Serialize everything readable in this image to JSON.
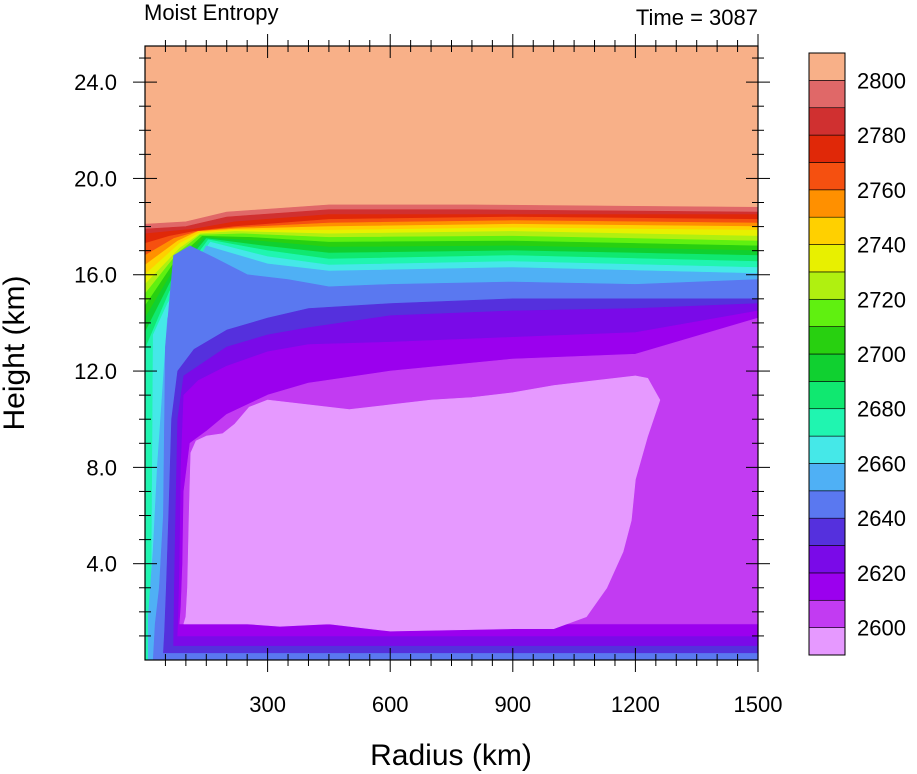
{
  "chart_data": {
    "type": "heatmap",
    "title_left": "Moist Entropy",
    "title_right": "Time = 3087",
    "xlabel": "Radius (km)",
    "ylabel": "Height (km)",
    "xlim": [
      0,
      1500
    ],
    "ylim": [
      0,
      25.5
    ],
    "x_ticks": [
      {
        "value": 300,
        "label": "300"
      },
      {
        "value": 600,
        "label": "600"
      },
      {
        "value": 900,
        "label": "900"
      },
      {
        "value": 1200,
        "label": "1200"
      },
      {
        "value": 1500,
        "label": "1500"
      }
    ],
    "y_ticks": [
      {
        "value": 4,
        "label": "4.0"
      },
      {
        "value": 8,
        "label": "8.0"
      },
      {
        "value": 12,
        "label": "12.0"
      },
      {
        "value": 16,
        "label": "16.0"
      },
      {
        "value": 20,
        "label": "20.0"
      },
      {
        "value": 24,
        "label": "24.0"
      }
    ],
    "colorbar": {
      "levels": [
        2600,
        2610,
        2620,
        2630,
        2640,
        2650,
        2660,
        2670,
        2680,
        2690,
        2700,
        2710,
        2720,
        2730,
        2740,
        2750,
        2760,
        2770,
        2780,
        2790,
        2800
      ],
      "colors": [
        "#e699ff",
        "#c23bf2",
        "#9b00ee",
        "#7a0ae8",
        "#5530dd",
        "#5a78f0",
        "#4fb0f5",
        "#45e8e8",
        "#20f5b0",
        "#10e870",
        "#10d030",
        "#28d010",
        "#60f010",
        "#b0f010",
        "#e8f000",
        "#ffd000",
        "#ff9000",
        "#f55010",
        "#e02808",
        "#d03030",
        "#e06868",
        "#f8b088"
      ],
      "labels": [
        {
          "value": 2600,
          "label": "2600"
        },
        {
          "value": 2620,
          "label": "2620"
        },
        {
          "value": 2640,
          "label": "2640"
        },
        {
          "value": 2660,
          "label": "2660"
        },
        {
          "value": 2680,
          "label": "2680"
        },
        {
          "value": 2700,
          "label": "2700"
        },
        {
          "value": 2720,
          "label": "2720"
        },
        {
          "value": 2740,
          "label": "2740"
        },
        {
          "value": 2760,
          "label": "2760"
        },
        {
          "value": 2780,
          "label": "2780"
        },
        {
          "value": 2800,
          "label": "2800"
        }
      ]
    },
    "regions": [
      {
        "level_index": 21,
        "color": "#f8b088",
        "points": [
          [
            0,
            0
          ],
          [
            1500,
            0
          ],
          [
            1500,
            25.5
          ],
          [
            0,
            25.5
          ]
        ]
      },
      {
        "level_index": 20,
        "color": "#e06868",
        "points": [
          [
            0,
            0
          ],
          [
            1500,
            0
          ],
          [
            1500,
            18.8
          ],
          [
            800,
            18.9
          ],
          [
            450,
            18.9
          ],
          [
            200,
            18.6
          ],
          [
            100,
            18.2
          ],
          [
            0,
            18.1
          ]
        ]
      },
      {
        "level_index": 19,
        "color": "#d03030",
        "points": [
          [
            0,
            0
          ],
          [
            1500,
            0
          ],
          [
            1500,
            18.6
          ],
          [
            800,
            18.7
          ],
          [
            450,
            18.7
          ],
          [
            200,
            18.4
          ],
          [
            100,
            18.0
          ],
          [
            0,
            17.9
          ]
        ]
      },
      {
        "level_index": 18,
        "color": "#e02808",
        "points": [
          [
            0,
            0
          ],
          [
            1500,
            0
          ],
          [
            1500,
            18.5
          ],
          [
            900,
            18.5
          ],
          [
            450,
            18.5
          ],
          [
            220,
            18.2
          ],
          [
            120,
            17.9
          ],
          [
            0,
            17.7
          ]
        ]
      },
      {
        "level_index": 17,
        "color": "#f55010",
        "points": [
          [
            0,
            0
          ],
          [
            1500,
            0
          ],
          [
            1500,
            18.3
          ],
          [
            900,
            18.4
          ],
          [
            450,
            18.3
          ],
          [
            220,
            18.0
          ],
          [
            120,
            17.8
          ],
          [
            60,
            17.6
          ],
          [
            0,
            17.3
          ]
        ]
      },
      {
        "level_index": 16,
        "color": "#ff9000",
        "points": [
          [
            0,
            0
          ],
          [
            1500,
            0
          ],
          [
            1500,
            18.15
          ],
          [
            900,
            18.25
          ],
          [
            450,
            18.15
          ],
          [
            220,
            17.95
          ],
          [
            130,
            17.8
          ],
          [
            70,
            17.5
          ],
          [
            0,
            16.8
          ]
        ]
      },
      {
        "level_index": 15,
        "color": "#ffd000",
        "points": [
          [
            0,
            0
          ],
          [
            1500,
            0
          ],
          [
            1500,
            18.0
          ],
          [
            900,
            18.1
          ],
          [
            450,
            18.0
          ],
          [
            220,
            17.9
          ],
          [
            130,
            17.8
          ],
          [
            80,
            17.4
          ],
          [
            0,
            16.4
          ]
        ]
      },
      {
        "level_index": 14,
        "color": "#e8f000",
        "points": [
          [
            0,
            0
          ],
          [
            1500,
            0
          ],
          [
            1500,
            17.85
          ],
          [
            900,
            17.95
          ],
          [
            450,
            17.85
          ],
          [
            220,
            17.85
          ],
          [
            135,
            17.75
          ],
          [
            85,
            17.3
          ],
          [
            0,
            16.0
          ]
        ]
      },
      {
        "level_index": 13,
        "color": "#b0f010",
        "points": [
          [
            0,
            0
          ],
          [
            1500,
            0
          ],
          [
            1500,
            17.6
          ],
          [
            900,
            17.8
          ],
          [
            450,
            17.7
          ],
          [
            220,
            17.8
          ],
          [
            135,
            17.7
          ],
          [
            85,
            17.1
          ],
          [
            0,
            15.6
          ]
        ]
      },
      {
        "level_index": 12,
        "color": "#60f010",
        "points": [
          [
            0,
            0
          ],
          [
            1500,
            0
          ],
          [
            1500,
            17.4
          ],
          [
            900,
            17.6
          ],
          [
            450,
            17.55
          ],
          [
            240,
            17.7
          ],
          [
            135,
            17.65
          ],
          [
            80,
            16.9
          ],
          [
            0,
            15.2
          ]
        ]
      },
      {
        "level_index": 11,
        "color": "#28d010",
        "points": [
          [
            0,
            0
          ],
          [
            1500,
            0
          ],
          [
            1500,
            17.2
          ],
          [
            900,
            17.4
          ],
          [
            450,
            17.35
          ],
          [
            260,
            17.55
          ],
          [
            140,
            17.6
          ],
          [
            75,
            16.6
          ],
          [
            0,
            14.7
          ]
        ]
      },
      {
        "level_index": 10,
        "color": "#10d030",
        "points": [
          [
            0,
            0
          ],
          [
            1500,
            0
          ],
          [
            1500,
            17.0
          ],
          [
            900,
            17.2
          ],
          [
            450,
            17.15
          ],
          [
            280,
            17.4
          ],
          [
            145,
            17.55
          ],
          [
            70,
            16.2
          ],
          [
            0,
            14.2
          ]
        ]
      },
      {
        "level_index": 9,
        "color": "#10e870",
        "points": [
          [
            0,
            0
          ],
          [
            1500,
            0
          ],
          [
            1500,
            16.8
          ],
          [
            900,
            17.0
          ],
          [
            450,
            16.9
          ],
          [
            290,
            17.2
          ],
          [
            150,
            17.5
          ],
          [
            65,
            15.8
          ],
          [
            0,
            13.6
          ]
        ]
      },
      {
        "level_index": 8,
        "color": "#20f5b0",
        "points": [
          [
            0,
            0
          ],
          [
            1500,
            0
          ],
          [
            1500,
            16.55
          ],
          [
            900,
            16.8
          ],
          [
            450,
            16.65
          ],
          [
            300,
            17.0
          ],
          [
            155,
            17.45
          ],
          [
            60,
            15.3
          ],
          [
            0,
            12.9
          ]
        ]
      },
      {
        "level_index": 7,
        "color": "#45e8e8",
        "points": [
          [
            0,
            0
          ],
          [
            1500,
            0
          ],
          [
            1500,
            16.3
          ],
          [
            900,
            16.55
          ],
          [
            450,
            16.4
          ],
          [
            300,
            16.75
          ],
          [
            160,
            17.35
          ],
          [
            55,
            14.8
          ],
          [
            20,
            13.5
          ],
          [
            15,
            0
          ]
        ]
      },
      {
        "level_index": 6,
        "color": "#4fb0f5",
        "points": [
          [
            8,
            0
          ],
          [
            1500,
            0
          ],
          [
            1500,
            16.05
          ],
          [
            900,
            16.3
          ],
          [
            450,
            16.15
          ],
          [
            300,
            16.45
          ],
          [
            150,
            17.2
          ],
          [
            55,
            14.2
          ],
          [
            30,
            8.0
          ],
          [
            20,
            4.6
          ],
          [
            8,
            1.8
          ]
        ]
      },
      {
        "level_index": 5,
        "color": "#5a78f0",
        "points": [
          [
            20,
            0
          ],
          [
            1500,
            0
          ],
          [
            1500,
            15.8
          ],
          [
            1200,
            15.6
          ],
          [
            900,
            15.7
          ],
          [
            600,
            15.6
          ],
          [
            450,
            15.5
          ],
          [
            350,
            15.8
          ],
          [
            250,
            16.0
          ],
          [
            170,
            16.7
          ],
          [
            110,
            17.2
          ],
          [
            70,
            16.8
          ],
          [
            50,
            13.0
          ],
          [
            45,
            6.0
          ],
          [
            35,
            3.0
          ],
          [
            25,
            1.5
          ]
        ]
      },
      {
        "level_index": 4,
        "color": "#5530dd",
        "points": [
          [
            45,
            0.3
          ],
          [
            1500,
            0.3
          ],
          [
            1500,
            15.0
          ],
          [
            1200,
            15.0
          ],
          [
            900,
            15.0
          ],
          [
            600,
            14.8
          ],
          [
            400,
            14.6
          ],
          [
            300,
            14.2
          ],
          [
            200,
            13.7
          ],
          [
            120,
            12.9
          ],
          [
            80,
            12.0
          ],
          [
            65,
            10.0
          ],
          [
            58,
            6.0
          ],
          [
            52,
            3.0
          ],
          [
            48,
            1.2
          ]
        ]
      },
      {
        "level_index": 3,
        "color": "#7a0ae8",
        "points": [
          [
            70,
            0.6
          ],
          [
            1500,
            0.6
          ],
          [
            1500,
            14.8
          ],
          [
            1200,
            14.6
          ],
          [
            900,
            14.5
          ],
          [
            600,
            14.3
          ],
          [
            400,
            13.8
          ],
          [
            300,
            13.5
          ],
          [
            200,
            13.0
          ],
          [
            130,
            12.2
          ],
          [
            95,
            11.8
          ],
          [
            80,
            10.0
          ],
          [
            75,
            6.0
          ],
          [
            72,
            3.0
          ]
        ]
      },
      {
        "level_index": 2,
        "color": "#9b00ee",
        "points": [
          [
            80,
            1.0
          ],
          [
            1500,
            1.0
          ],
          [
            1500,
            14.5
          ],
          [
            1200,
            13.6
          ],
          [
            900,
            13.4
          ],
          [
            600,
            13.2
          ],
          [
            400,
            13.1
          ],
          [
            300,
            12.8
          ],
          [
            200,
            12.2
          ],
          [
            130,
            11.6
          ],
          [
            95,
            11.0
          ],
          [
            88,
            8.0
          ],
          [
            85,
            4.0
          ],
          [
            82,
            1.8
          ]
        ]
      },
      {
        "level_index": 1,
        "color": "#c23bf2",
        "points": [
          [
            85,
            1.5
          ],
          [
            1500,
            1.5
          ],
          [
            1500,
            14.2
          ],
          [
            1200,
            12.7
          ],
          [
            900,
            12.5
          ],
          [
            600,
            12.0
          ],
          [
            400,
            11.5
          ],
          [
            300,
            11.0
          ],
          [
            200,
            10.2
          ],
          [
            150,
            9.5
          ],
          [
            110,
            9.0
          ],
          [
            95,
            7.0
          ],
          [
            92,
            4.0
          ],
          [
            88,
            2.2
          ]
        ]
      },
      {
        "level_index": 0,
        "color": "#e699ff",
        "points": [
          [
            95,
            1.5
          ],
          [
            250,
            1.5
          ],
          [
            330,
            1.4
          ],
          [
            450,
            1.5
          ],
          [
            600,
            1.2
          ],
          [
            900,
            1.3
          ],
          [
            1000,
            1.3
          ],
          [
            1080,
            1.8
          ],
          [
            1130,
            3.0
          ],
          [
            1170,
            4.5
          ],
          [
            1190,
            5.8
          ],
          [
            1200,
            7.5
          ],
          [
            1230,
            9.3
          ],
          [
            1260,
            10.8
          ],
          [
            1230,
            11.7
          ],
          [
            1200,
            11.8
          ],
          [
            1100,
            11.6
          ],
          [
            1000,
            11.4
          ],
          [
            900,
            11.1
          ],
          [
            800,
            10.9
          ],
          [
            700,
            10.8
          ],
          [
            600,
            10.6
          ],
          [
            500,
            10.4
          ],
          [
            400,
            10.6
          ],
          [
            300,
            10.8
          ],
          [
            255,
            10.5
          ],
          [
            220,
            9.8
          ],
          [
            190,
            9.4
          ],
          [
            150,
            9.3
          ],
          [
            125,
            9.1
          ],
          [
            112,
            8.6
          ],
          [
            108,
            6.0
          ],
          [
            104,
            3.0
          ],
          [
            100,
            1.8
          ]
        ]
      }
    ]
  }
}
